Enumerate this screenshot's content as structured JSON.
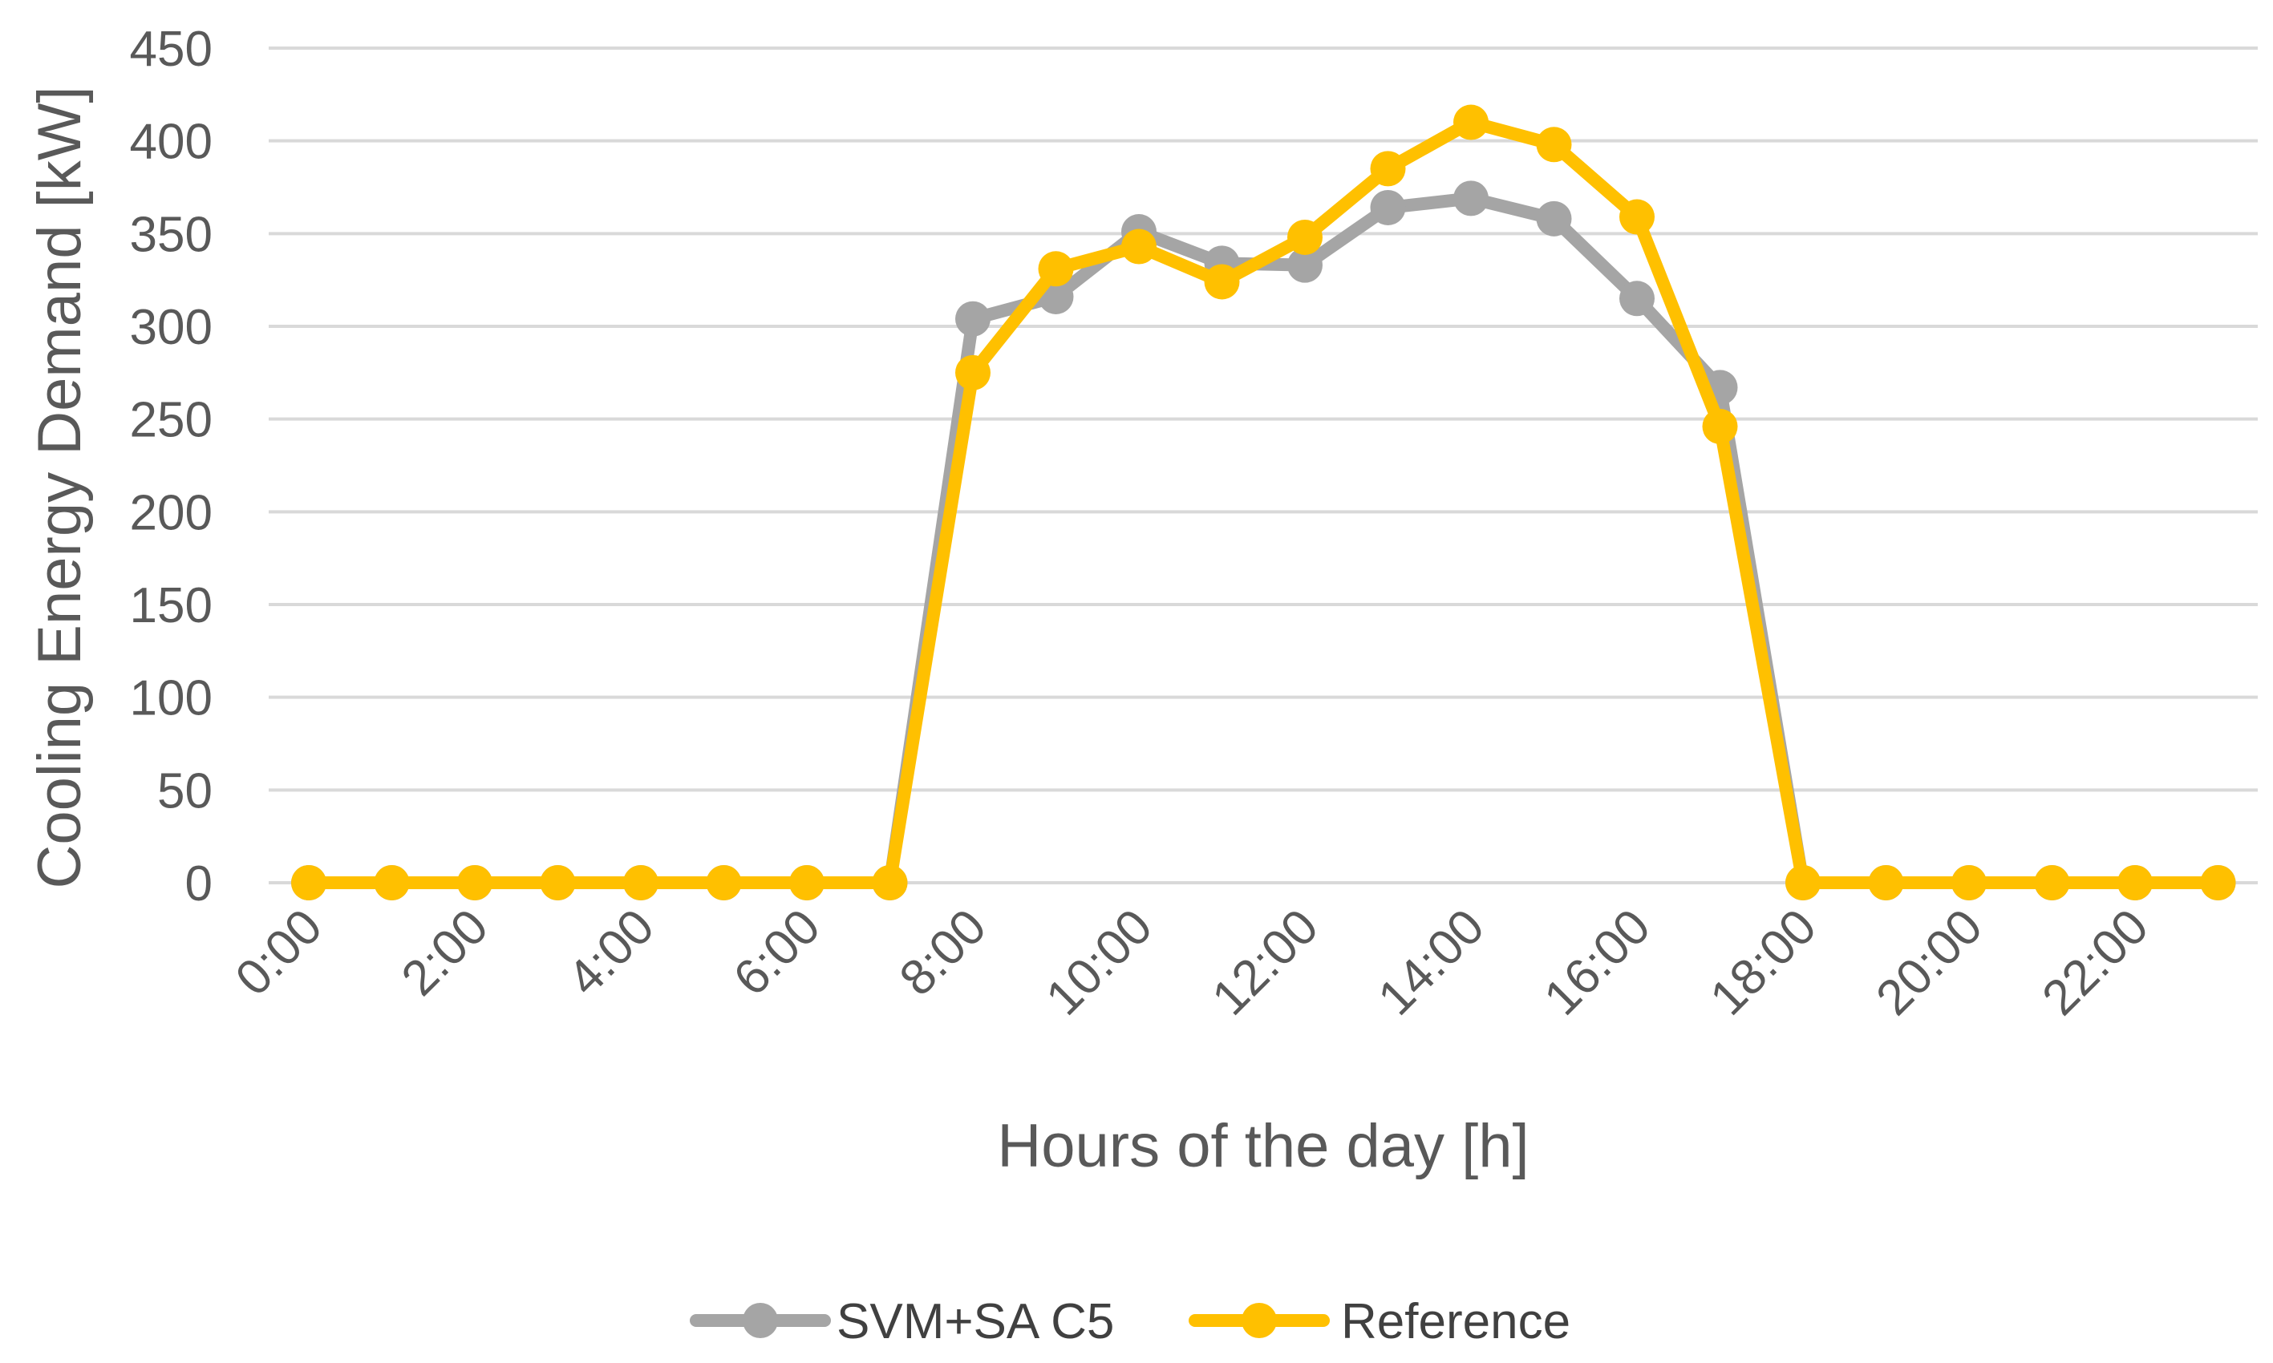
{
  "chart_data": {
    "type": "line",
    "title": "",
    "xlabel": "Hours of the day [h]",
    "ylabel": "Cooling Energy Demand [kW]",
    "ylim": [
      0,
      450
    ],
    "yticks": [
      "0",
      "50",
      "100",
      "150",
      "200",
      "250",
      "300",
      "350",
      "400",
      "450"
    ],
    "categories": [
      "0:00",
      "1:00",
      "2:00",
      "3:00",
      "4:00",
      "5:00",
      "6:00",
      "7:00",
      "8:00",
      "9:00",
      "10:00",
      "11:00",
      "12:00",
      "13:00",
      "14:00",
      "15:00",
      "16:00",
      "17:00",
      "18:00",
      "19:00",
      "20:00",
      "21:00",
      "22:00",
      "23:00"
    ],
    "xtick_labels": [
      "0:00",
      "",
      "2:00",
      "",
      "4:00",
      "",
      "6:00",
      "",
      "8:00",
      "",
      "10:00",
      "",
      "12:00",
      "",
      "14:00",
      "",
      "16:00",
      "",
      "18:00",
      "",
      "20:00",
      "",
      "22:00",
      ""
    ],
    "grid": true,
    "legend_position": "bottom-center",
    "series": [
      {
        "name": "SVM+SA C5",
        "color": "#A5A5A5",
        "values": [
          0,
          0,
          0,
          0,
          0,
          0,
          0,
          0,
          304,
          316,
          351,
          334,
          333,
          364,
          369,
          358,
          315,
          267,
          0,
          0,
          0,
          0,
          0,
          0
        ]
      },
      {
        "name": "Reference",
        "color": "#FFC000",
        "values": [
          0,
          0,
          0,
          0,
          0,
          0,
          0,
          0,
          275,
          331,
          343,
          324,
          348,
          385,
          410,
          398,
          359,
          246,
          0,
          0,
          0,
          0,
          0,
          0
        ]
      }
    ]
  }
}
